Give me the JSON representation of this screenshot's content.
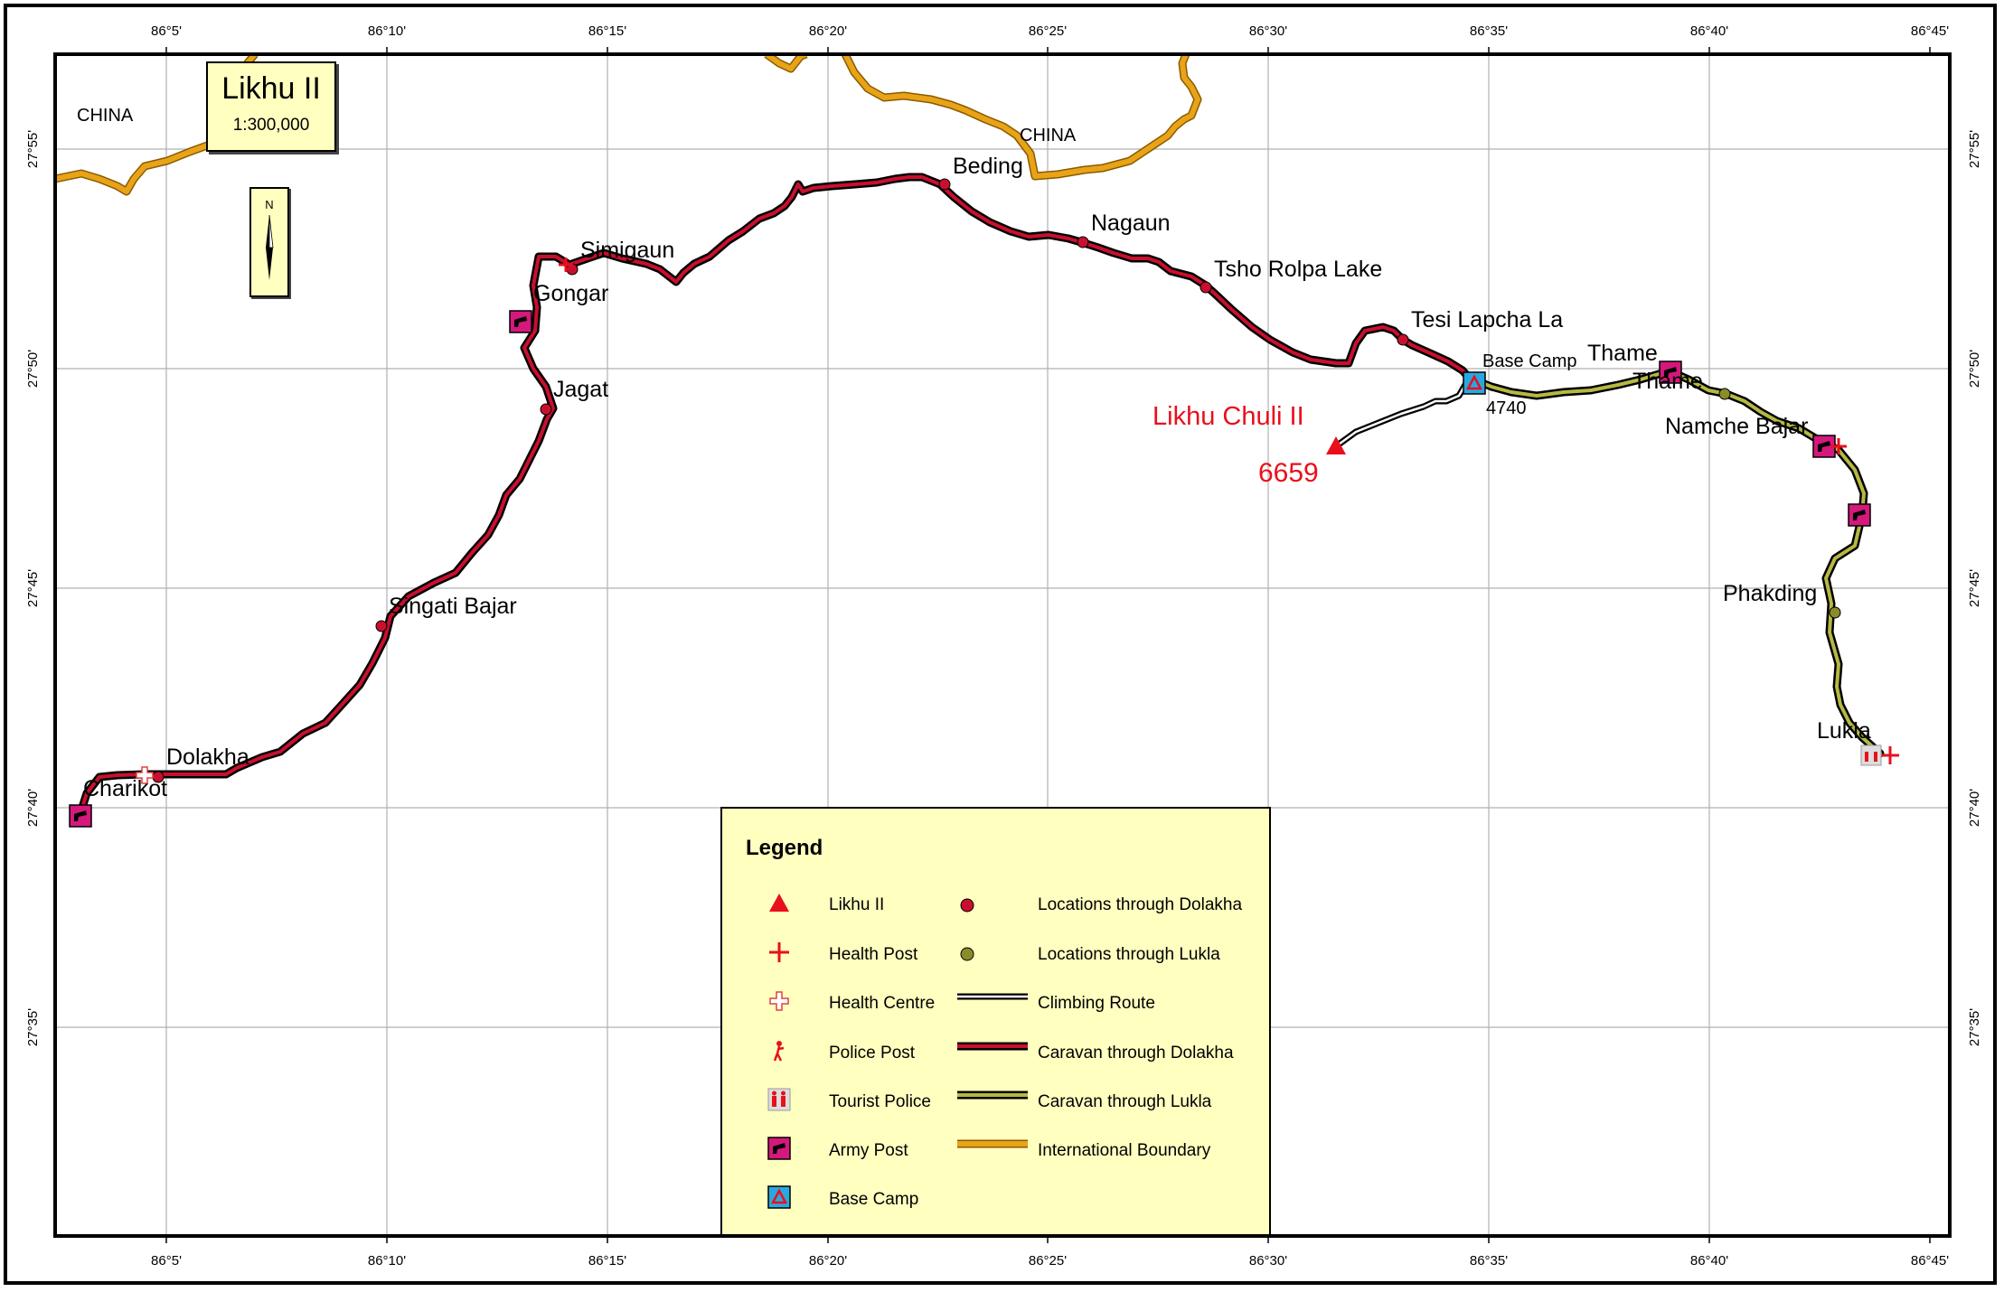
{
  "map": {
    "title": "Likhu II",
    "scale": "1:300,000",
    "north_label": "N",
    "longitude_ticks": [
      "86°5'",
      "86°10'",
      "86°15'",
      "86°20'",
      "86°25'",
      "86°30'",
      "86°35'",
      "86°40'",
      "86°45'"
    ],
    "latitude_ticks": [
      "27°55'",
      "27°50'",
      "27°45'",
      "27°40'",
      "27°35'"
    ],
    "country_labels": [
      "CHINA",
      "CHINA"
    ],
    "peak": {
      "name": "Likhu Chuli II",
      "elevation": "6659"
    },
    "base_camp": {
      "name": "Base Camp",
      "elevation": "4740"
    },
    "places_dolakha": [
      "Charikot",
      "Dolakha",
      "Singati Bajar",
      "Jagat",
      "Gongar",
      "Simigaun",
      "Beding",
      "Nagaun",
      "Tsho Rolpa Lake",
      "Tesi Lapcha La"
    ],
    "places_lukla": [
      "Thame",
      "Thame",
      "Namche Bajar",
      "Phakding",
      "Lukla"
    ],
    "colors": {
      "frame": "#000000",
      "grid": "#b0b0b0",
      "dolakha_route": "#c8102e",
      "lukla_route": "#b5b842",
      "boundary": "#e8a317",
      "peak_red": "#e8101c",
      "army_post": "#d4187c",
      "base_camp": "#29a8e0",
      "legend_bg": "#ffffc0"
    }
  },
  "legend": {
    "title": "Legend",
    "left_items": [
      {
        "icon": "red-triangle-icon",
        "label": "Likhu II"
      },
      {
        "icon": "red-cross-icon",
        "label": "Health Post"
      },
      {
        "icon": "outline-cross-icon",
        "label": "Health Centre"
      },
      {
        "icon": "police-figure-icon",
        "label": "Police Post"
      },
      {
        "icon": "tourist-police-icon",
        "label": "Tourist Police"
      },
      {
        "icon": "army-post-icon",
        "label": "Army Post"
      },
      {
        "icon": "base-camp-icon",
        "label": "Base Camp"
      }
    ],
    "right_items": [
      {
        "icon": "red-dot-icon",
        "label": "Locations through Dolakha"
      },
      {
        "icon": "olive-dot-icon",
        "label": "Locations through Lukla"
      },
      {
        "icon": "climbing-line-icon",
        "label": "Climbing Route"
      },
      {
        "icon": "dolakha-line-icon",
        "label": "Caravan through Dolakha"
      },
      {
        "icon": "lukla-line-icon",
        "label": "Caravan through Lukla"
      },
      {
        "icon": "boundary-line-icon",
        "label": "International Boundary"
      }
    ]
  }
}
